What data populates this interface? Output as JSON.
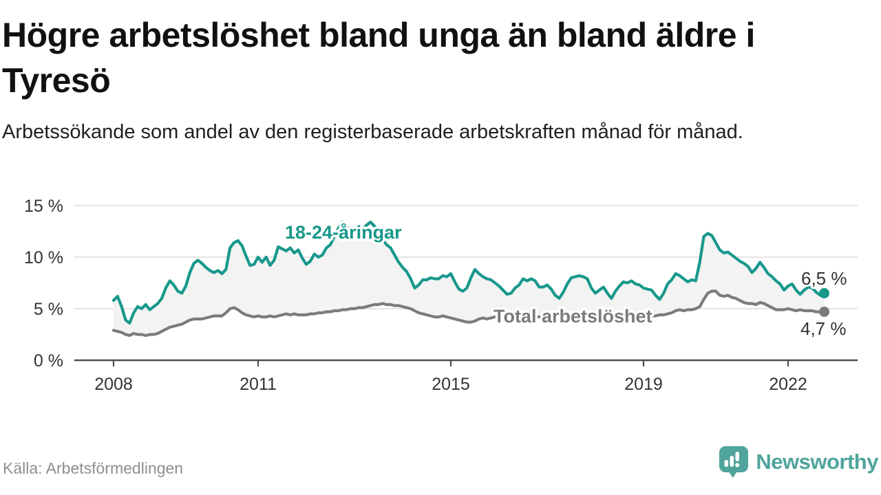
{
  "header": {
    "title": "Högre arbetslöshet bland unga än bland äldre i Tyresö",
    "subtitle": "Arbetssökande som andel av den registerbaserade arbetskraften månad för månad."
  },
  "chart_data": {
    "type": "line",
    "title": "Högre arbetslöshet bland unga än bland äldre i Tyresö",
    "xlabel": "",
    "ylabel": "Arbetssökande som andel av den registerbaserade arbetskraften",
    "x_start_year": 2008,
    "x_start_month": 1,
    "x_step_months": 1,
    "x_end_year": 2022,
    "x_end_month": 10,
    "ylim": [
      0,
      15.6
    ],
    "grid": "horizontal",
    "band_fill": "#f3f3f3",
    "x_ticks": [
      {
        "label": "2008",
        "year": 2008
      },
      {
        "label": "2011",
        "year": 2011
      },
      {
        "label": "2015",
        "year": 2015
      },
      {
        "label": "2019",
        "year": 2019
      },
      {
        "label": "2022",
        "year": 2022
      }
    ],
    "y_ticks": [
      {
        "label": "0 %",
        "value": 0
      },
      {
        "label": "5 %",
        "value": 5
      },
      {
        "label": "10 %",
        "value": 10
      },
      {
        "label": "15 %",
        "value": 15
      }
    ],
    "series": [
      {
        "name": "18-24-åringar",
        "color": "#17988b",
        "end_label": "6,5 %",
        "end_value": 6.5,
        "values": [
          5.8,
          6.2,
          5.2,
          3.9,
          3.6,
          4.6,
          5.2,
          5.0,
          5.4,
          4.9,
          5.2,
          5.5,
          6.0,
          7.0,
          7.7,
          7.3,
          6.7,
          6.5,
          7.2,
          8.5,
          9.4,
          9.7,
          9.4,
          9.0,
          8.7,
          8.5,
          8.7,
          8.4,
          8.8,
          10.9,
          11.4,
          11.6,
          11.1,
          10.1,
          9.2,
          9.3,
          10.0,
          9.5,
          10.0,
          9.2,
          9.7,
          11.0,
          10.8,
          10.6,
          10.9,
          10.4,
          10.7,
          9.9,
          9.3,
          9.6,
          10.3,
          10.0,
          10.2,
          10.9,
          11.2,
          12.0,
          12.8,
          13.4,
          13.0,
          12.6,
          12.3,
          12.4,
          12.7,
          13.1,
          13.4,
          13.0,
          12.3,
          11.7,
          11.2,
          10.9,
          10.2,
          9.5,
          9.0,
          8.6,
          7.9,
          7.0,
          7.3,
          7.8,
          7.8,
          8.0,
          7.9,
          7.9,
          8.2,
          8.1,
          8.4,
          7.6,
          6.9,
          6.7,
          7.0,
          8.0,
          8.8,
          8.4,
          8.1,
          7.9,
          7.8,
          7.5,
          7.2,
          6.8,
          6.4,
          6.5,
          7.0,
          7.3,
          7.9,
          7.7,
          7.9,
          7.7,
          7.1,
          7.1,
          7.3,
          6.9,
          6.3,
          6.0,
          6.6,
          7.4,
          8.0,
          8.1,
          8.2,
          8.1,
          7.9,
          7.0,
          6.5,
          6.8,
          7.1,
          6.5,
          6.0,
          6.7,
          7.2,
          7.6,
          7.5,
          7.7,
          7.4,
          7.3,
          7.0,
          6.9,
          6.8,
          6.3,
          5.9,
          6.5,
          7.4,
          7.8,
          8.4,
          8.2,
          7.9,
          7.6,
          7.8,
          7.7,
          9.5,
          12.0,
          12.3,
          12.1,
          11.4,
          10.7,
          10.4,
          10.5,
          10.2,
          9.9,
          9.6,
          9.4,
          9.1,
          8.5,
          8.9,
          9.5,
          9.0,
          8.4,
          8.1,
          7.7,
          7.4,
          6.8,
          7.2,
          7.4,
          6.8,
          6.4,
          6.8,
          7.1,
          7.0,
          6.6,
          6.3,
          6.5
        ]
      },
      {
        "name": "Total arbetslöshet",
        "color": "#7b7b7b",
        "end_label": "4,7 %",
        "end_value": 4.7,
        "values": [
          2.9,
          2.8,
          2.7,
          2.5,
          2.4,
          2.6,
          2.5,
          2.5,
          2.4,
          2.5,
          2.5,
          2.6,
          2.8,
          3.0,
          3.2,
          3.3,
          3.4,
          3.5,
          3.7,
          3.9,
          4.0,
          4.0,
          4.0,
          4.1,
          4.2,
          4.3,
          4.3,
          4.3,
          4.6,
          5.0,
          5.1,
          4.9,
          4.6,
          4.4,
          4.3,
          4.2,
          4.3,
          4.2,
          4.2,
          4.3,
          4.2,
          4.3,
          4.4,
          4.5,
          4.4,
          4.5,
          4.4,
          4.4,
          4.4,
          4.5,
          4.5,
          4.6,
          4.6,
          4.7,
          4.7,
          4.8,
          4.8,
          4.9,
          4.9,
          5.0,
          5.0,
          5.1,
          5.1,
          5.2,
          5.3,
          5.4,
          5.4,
          5.5,
          5.4,
          5.4,
          5.3,
          5.3,
          5.2,
          5.1,
          5.0,
          4.8,
          4.6,
          4.5,
          4.4,
          4.3,
          4.2,
          4.2,
          4.3,
          4.2,
          4.1,
          4.0,
          3.9,
          3.8,
          3.7,
          3.7,
          3.8,
          4.0,
          4.1,
          4.0,
          4.1,
          4.2,
          4.2,
          4.2,
          4.1,
          4.1,
          4.1,
          4.1,
          4.1,
          4.1,
          4.2,
          4.2,
          4.2,
          4.2,
          4.2,
          4.1,
          4.1,
          4.0,
          4.0,
          4.0,
          4.1,
          4.1,
          4.2,
          4.2,
          4.2,
          4.2,
          4.2,
          4.2,
          4.1,
          4.1,
          4.1,
          4.1,
          4.2,
          4.2,
          4.3,
          4.3,
          4.3,
          4.3,
          4.3,
          4.3,
          4.3,
          4.3,
          4.4,
          4.4,
          4.5,
          4.6,
          4.8,
          4.9,
          4.8,
          4.9,
          4.9,
          5.0,
          5.2,
          5.9,
          6.5,
          6.7,
          6.7,
          6.3,
          6.2,
          6.3,
          6.1,
          6.0,
          5.8,
          5.6,
          5.5,
          5.5,
          5.4,
          5.6,
          5.5,
          5.3,
          5.1,
          4.9,
          4.9,
          4.9,
          5.0,
          4.9,
          4.8,
          4.9,
          4.8,
          4.8,
          4.8,
          4.7,
          4.7,
          4.7
        ]
      }
    ]
  },
  "footer": {
    "source": "Källa: Arbetsförmedlingen",
    "brand": "Newsworthy",
    "brand_color": "#4fa49c"
  }
}
